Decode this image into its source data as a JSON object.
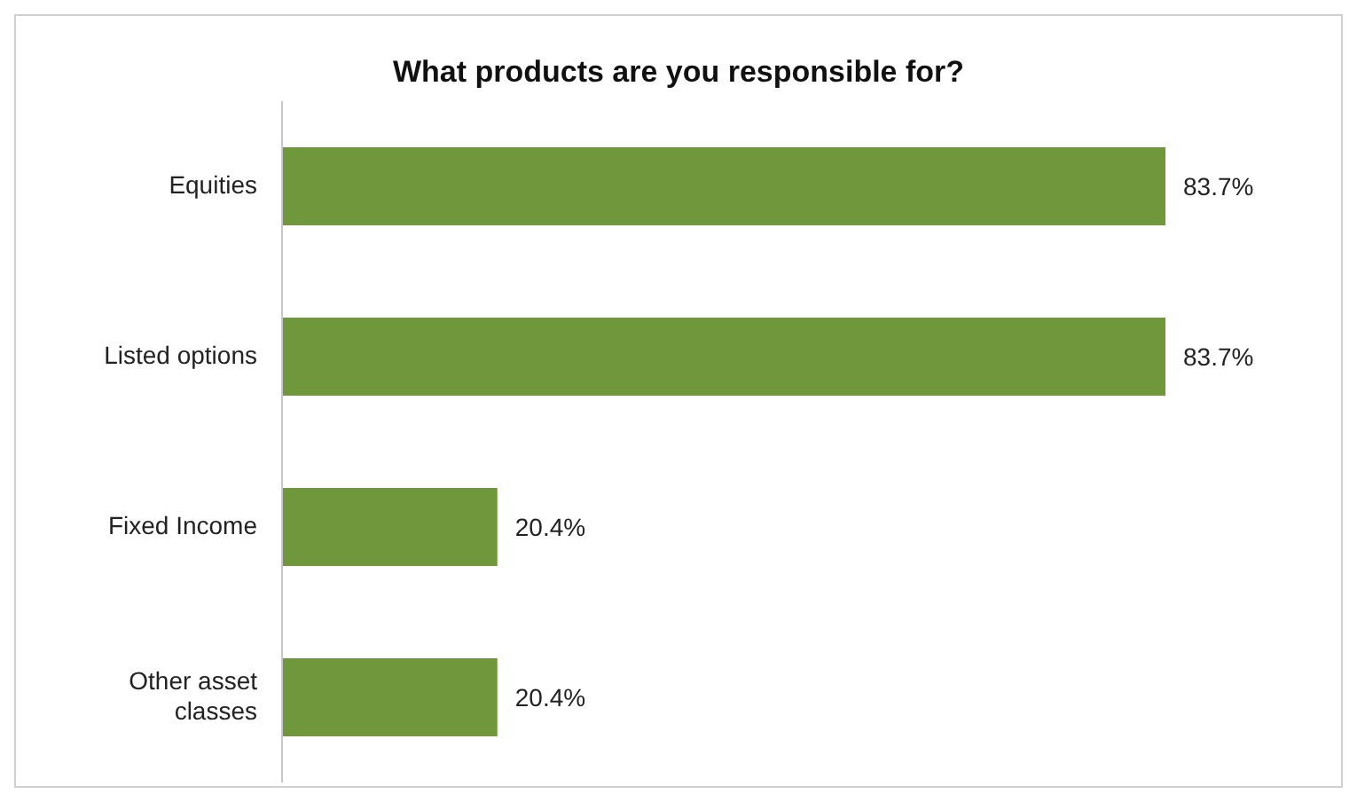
{
  "chart_data": {
    "type": "bar",
    "orientation": "horizontal",
    "title": "What products are you responsible for?",
    "categories": [
      "Equities",
      "Listed options",
      "Fixed Income",
      "Other asset classes"
    ],
    "values": [
      83.7,
      83.7,
      20.4,
      20.4
    ],
    "value_labels": [
      "83.7%",
      "83.7%",
      "20.4%",
      "20.4%"
    ],
    "color": "#70973c",
    "xlim": [
      0,
      100
    ],
    "tick_labels": "y",
    "grid": false,
    "legend": false
  }
}
